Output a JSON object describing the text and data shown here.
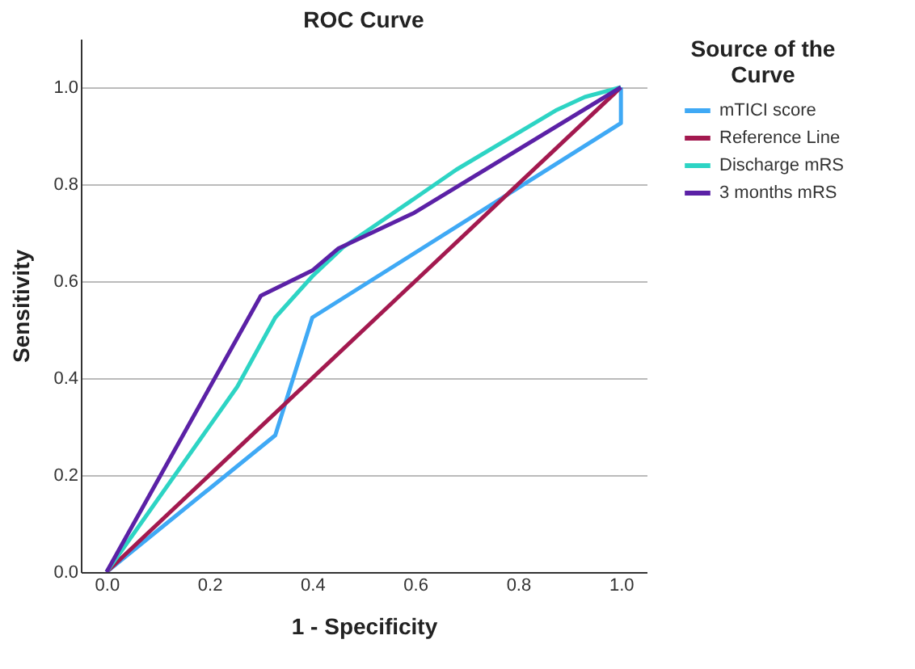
{
  "chart_data": {
    "type": "line",
    "title": "ROC Curve",
    "xlabel": "1 - Specificity",
    "ylabel": "Sensitivity",
    "legend_title": "Source of the Curve",
    "legend": "right",
    "grid": "y",
    "line_style": "solid",
    "marker": "none",
    "xlim": [
      -0.05,
      1.05
    ],
    "ylim": [
      0,
      1.1
    ],
    "xticks": [
      {
        "value": 0,
        "label": "0.0"
      },
      {
        "value": 0.2,
        "label": "0.2"
      },
      {
        "value": 0.4,
        "label": "0.4"
      },
      {
        "value": 0.6,
        "label": "0.6"
      },
      {
        "value": 0.8,
        "label": "0.8"
      },
      {
        "value": 1,
        "label": "1.0"
      }
    ],
    "yticks": [
      {
        "value": 0,
        "label": "0.0"
      },
      {
        "value": 0.2,
        "label": "0.2"
      },
      {
        "value": 0.4,
        "label": "0.4"
      },
      {
        "value": 0.6,
        "label": "0.6"
      },
      {
        "value": 0.8,
        "label": "0.8"
      },
      {
        "value": 1,
        "label": "1.0"
      }
    ],
    "series": [
      {
        "name": "mTICI score",
        "color": "#3fa9f5",
        "x": [
          0,
          0.328,
          0.4,
          1.0,
          1.0
        ],
        "values": [
          0,
          0.282,
          0.525,
          0.926,
          1.0
        ]
      },
      {
        "name": "Reference Line",
        "color": "#a3194f",
        "x": [
          0,
          1
        ],
        "values": [
          0,
          1
        ]
      },
      {
        "name": "Discharge mRS",
        "color": "#2dd4c4",
        "x": [
          0,
          0.254,
          0.328,
          0.4,
          0.46,
          0.598,
          0.68,
          0.873,
          0.93,
          1.0
        ],
        "values": [
          0,
          0.382,
          0.525,
          0.61,
          0.67,
          0.77,
          0.83,
          0.952,
          0.98,
          1.0
        ]
      },
      {
        "name": "3 months mRS",
        "color": "#5b21a6",
        "x": [
          0,
          0.3,
          0.4,
          0.45,
          0.598,
          1.0
        ],
        "values": [
          0,
          0.57,
          0.622,
          0.667,
          0.741,
          1.0
        ]
      }
    ]
  }
}
